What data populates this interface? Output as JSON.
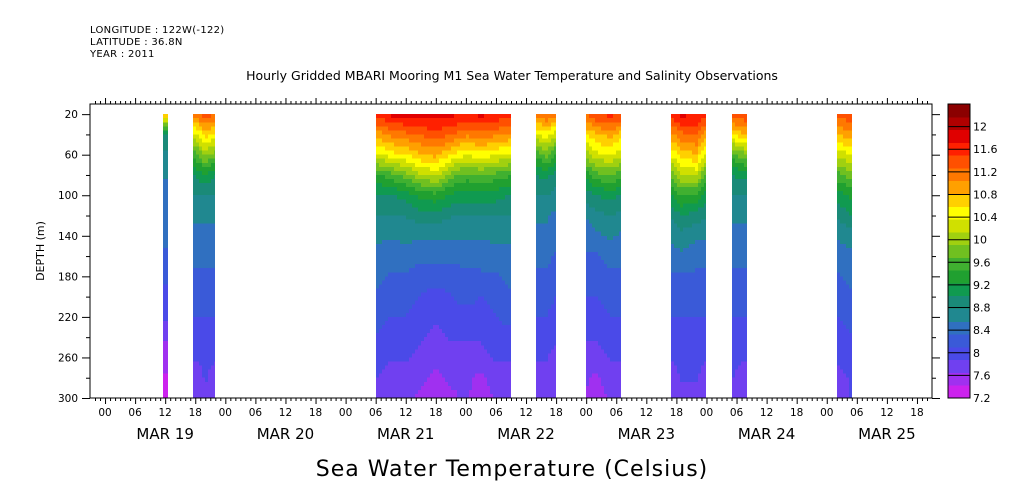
{
  "header": {
    "longitude": "LONGITUDE : 122W(-122)",
    "latitude": "LATITUDE : 36.8N",
    "year": "YEAR : 2011"
  },
  "chart_data": {
    "type": "heatmap",
    "title": "Hourly Gridded MBARI Mooring M1 Sea Water Temperature and Salinity Observations",
    "xlabel": "Sea Water Temperature (Celsius)",
    "ylabel": "DEPTH (m)",
    "x_unit": "hours since MAR 19 00",
    "xlim": [
      -3,
      165
    ],
    "ylim": [
      300,
      10
    ],
    "y_ticks": [
      20,
      60,
      100,
      140,
      180,
      220,
      260,
      300
    ],
    "x_tick_labels": [
      "00",
      "06",
      "12",
      "18",
      "00",
      "06",
      "12",
      "18",
      "00",
      "06",
      "12",
      "18",
      "00",
      "06",
      "12",
      "18",
      "00",
      "06",
      "12",
      "18",
      "00",
      "06",
      "12",
      "18",
      "00",
      "06",
      "12",
      "18"
    ],
    "x_day_labels": [
      "MAR 19",
      "MAR 20",
      "MAR 21",
      "MAR 22",
      "MAR 23",
      "MAR 24",
      "MAR 25"
    ],
    "colorbar": {
      "min": 7.2,
      "max": 12.4,
      "tick_labels": [
        "12",
        "11.6",
        "11.2",
        "10.8",
        "10.4",
        "10",
        "9.6",
        "9.2",
        "8.8",
        "8.4",
        "8",
        "7.6",
        "7.2"
      ],
      "colors": [
        "#cc22ee",
        "#a030f0",
        "#7040f0",
        "#4a4ae8",
        "#3a5ad8",
        "#3070c0",
        "#208890",
        "#1a8a78",
        "#109a50",
        "#20a030",
        "#40b030",
        "#70c020",
        "#a0d010",
        "#d0e000",
        "#ffff00",
        "#ffd000",
        "#ffa000",
        "#ff7800",
        "#ff5000",
        "#ff2000",
        "#e00000",
        "#b00000",
        "#8b0000"
      ]
    },
    "depths": [
      20,
      40,
      60,
      80,
      100,
      120,
      140,
      160,
      180,
      200,
      220,
      240,
      260,
      280,
      300
    ],
    "segments": [
      {
        "start": 11.5,
        "end": 12.5,
        "profiles": [
          {
            "t": 12,
            "values": [
              10.8,
              9.0,
              8.7,
              8.6,
              8.4,
              8.4,
              8.4,
              8.3,
              8.2,
              8.0,
              7.9,
              7.7,
              7.5,
              7.4,
              7.3
            ]
          }
        ]
      },
      {
        "start": 17.5,
        "end": 22,
        "profiles": [
          {
            "t": 18,
            "values": [
              11.2,
              10.3,
              9.6,
              9.0,
              8.8,
              8.6,
              8.5,
              8.4,
              8.3,
              8.2,
              8.1,
              8.0,
              7.9,
              7.8,
              7.7
            ]
          },
          {
            "t": 20,
            "values": [
              11.4,
              10.7,
              10.0,
              9.2,
              8.8,
              8.6,
              8.5,
              8.4,
              8.3,
              8.2,
              8.1,
              8.0,
              7.9,
              7.9,
              7.8
            ]
          },
          {
            "t": 22,
            "values": [
              11.3,
              10.5,
              9.8,
              9.0,
              8.8,
              8.6,
              8.5,
              8.4,
              8.3,
              8.2,
              8.1,
              8.0,
              7.9,
              7.8,
              7.8
            ]
          }
        ]
      },
      {
        "start": 54,
        "end": 81,
        "profiles": [
          {
            "t": 54,
            "values": [
              11.6,
              10.9,
              10.3,
              9.4,
              9.0,
              8.8,
              8.6,
              8.5,
              8.4,
              8.3,
              8.2,
              8.1,
              8.0,
              7.9,
              7.8
            ]
          },
          {
            "t": 57,
            "values": [
              11.8,
              11.1,
              10.5,
              9.6,
              9.0,
              8.8,
              8.6,
              8.4,
              8.3,
              8.2,
              8.1,
              8.0,
              7.9,
              7.8,
              7.7
            ]
          },
          {
            "t": 60,
            "values": [
              11.8,
              11.2,
              10.6,
              9.8,
              9.1,
              8.8,
              8.6,
              8.5,
              8.3,
              8.2,
              8.1,
              8.0,
              7.9,
              7.8,
              7.7
            ]
          },
          {
            "t": 63,
            "values": [
              11.9,
              11.3,
              10.8,
              10.1,
              9.3,
              8.9,
              8.6,
              8.4,
              8.2,
              8.1,
              8.0,
              7.9,
              7.8,
              7.7,
              7.6
            ]
          },
          {
            "t": 66,
            "values": [
              11.8,
              11.4,
              10.9,
              10.2,
              9.4,
              8.9,
              8.6,
              8.4,
              8.2,
              8.0,
              7.9,
              7.8,
              7.7,
              7.6,
              7.6
            ]
          },
          {
            "t": 69,
            "values": [
              11.8,
              11.3,
              10.6,
              9.8,
              9.2,
              8.8,
              8.6,
              8.4,
              8.2,
              8.1,
              8.0,
              7.9,
              7.8,
              7.7,
              7.6
            ]
          },
          {
            "t": 72,
            "values": [
              11.7,
              11.1,
              10.4,
              9.6,
              9.1,
              8.8,
              8.6,
              8.4,
              8.3,
              8.2,
              8.0,
              7.9,
              7.8,
              7.7,
              7.7
            ]
          },
          {
            "t": 75,
            "values": [
              11.8,
              11.2,
              10.5,
              9.7,
              9.1,
              8.8,
              8.6,
              8.4,
              8.3,
              8.1,
              8.0,
              7.9,
              7.8,
              7.6,
              7.5
            ]
          },
          {
            "t": 78,
            "values": [
              11.7,
              11.1,
              10.4,
              9.6,
              9.1,
              8.8,
              8.6,
              8.5,
              8.3,
              8.2,
              8.1,
              8.0,
              7.9,
              7.8,
              7.7
            ]
          },
          {
            "t": 81,
            "values": [
              11.6,
              11.0,
              10.3,
              9.5,
              9.0,
              8.8,
              8.6,
              8.5,
              8.4,
              8.3,
              8.2,
              8.0,
              7.9,
              7.8,
              7.8
            ]
          }
        ]
      },
      {
        "start": 86,
        "end": 90,
        "profiles": [
          {
            "t": 86,
            "values": [
              11.2,
              10.3,
              9.5,
              9.0,
              8.8,
              8.6,
              8.5,
              8.4,
              8.3,
              8.2,
              8.1,
              8.0,
              7.9,
              7.8,
              7.8
            ]
          },
          {
            "t": 88,
            "values": [
              11.3,
              10.5,
              9.8,
              9.1,
              8.8,
              8.6,
              8.5,
              8.4,
              8.3,
              8.2,
              8.1,
              8.0,
              7.9,
              7.8,
              7.7
            ]
          },
          {
            "t": 90,
            "values": [
              11.2,
              10.2,
              9.4,
              8.9,
              8.7,
              8.5,
              8.4,
              8.3,
              8.2,
              8.1,
              8.0,
              7.9,
              7.8,
              7.8,
              7.7
            ]
          }
        ]
      },
      {
        "start": 96,
        "end": 103,
        "profiles": [
          {
            "t": 96,
            "values": [
              11.3,
              10.6,
              10.0,
              9.3,
              8.9,
              8.6,
              8.4,
              8.3,
              8.2,
              8.1,
              8.0,
              7.9,
              7.8,
              7.7,
              7.6
            ]
          },
          {
            "t": 98,
            "values": [
              11.5,
              10.8,
              10.3,
              9.6,
              9.0,
              8.7,
              8.5,
              8.3,
              8.2,
              8.1,
              8.0,
              7.9,
              7.8,
              7.6,
              7.5
            ]
          },
          {
            "t": 101,
            "values": [
              11.6,
              10.9,
              10.4,
              9.7,
              9.1,
              8.8,
              8.6,
              8.4,
              8.3,
              8.2,
              8.1,
              8.0,
              7.9,
              7.8,
              7.7
            ]
          },
          {
            "t": 103,
            "values": [
              11.5,
              10.7,
              10.2,
              9.5,
              9.0,
              8.7,
              8.5,
              8.4,
              8.3,
              8.2,
              8.1,
              8.0,
              7.9,
              7.8,
              7.8
            ]
          }
        ]
      },
      {
        "start": 113,
        "end": 120,
        "profiles": [
          {
            "t": 113,
            "values": [
              11.6,
              11.0,
              10.4,
              9.8,
              9.2,
              8.8,
              8.6,
              8.5,
              8.3,
              8.2,
              8.1,
              8.0,
              7.9,
              7.8,
              7.8
            ]
          },
          {
            "t": 115,
            "values": [
              11.8,
              11.2,
              10.7,
              10.1,
              9.5,
              9.0,
              8.7,
              8.5,
              8.3,
              8.2,
              8.1,
              8.0,
              7.9,
              7.9,
              7.8
            ]
          },
          {
            "t": 118,
            "values": [
              11.7,
              11.3,
              10.8,
              10.2,
              9.4,
              8.9,
              8.6,
              8.4,
              8.3,
              8.2,
              8.1,
              8.0,
              7.9,
              7.9,
              7.8
            ]
          },
          {
            "t": 120,
            "values": [
              11.6,
              10.9,
              10.3,
              9.6,
              9.1,
              8.8,
              8.6,
              8.4,
              8.3,
              8.2,
              8.1,
              8.0,
              7.9,
              7.8,
              7.8
            ]
          }
        ]
      },
      {
        "start": 125,
        "end": 128,
        "profiles": [
          {
            "t": 125,
            "values": [
              11.4,
              10.6,
              9.6,
              9.0,
              8.8,
              8.6,
              8.5,
              8.4,
              8.3,
              8.2,
              8.1,
              8.0,
              7.9,
              7.9,
              7.8
            ]
          },
          {
            "t": 128,
            "values": [
              11.5,
              10.8,
              9.9,
              9.1,
              8.8,
              8.6,
              8.5,
              8.4,
              8.3,
              8.2,
              8.1,
              8.0,
              7.9,
              7.8,
              7.8
            ]
          }
        ]
      },
      {
        "start": 146,
        "end": 149,
        "profiles": [
          {
            "t": 146,
            "values": [
              11.3,
              10.8,
              10.2,
              9.6,
              9.1,
              8.8,
              8.6,
              8.4,
              8.3,
              8.2,
              8.1,
              8.0,
              7.9,
              7.8,
              7.8
            ]
          },
          {
            "t": 149,
            "values": [
              11.5,
              11.0,
              10.4,
              9.8,
              9.3,
              9.0,
              8.7,
              8.5,
              8.4,
              8.3,
              8.2,
              8.1,
              8.0,
              7.9,
              7.9
            ]
          }
        ]
      }
    ]
  }
}
